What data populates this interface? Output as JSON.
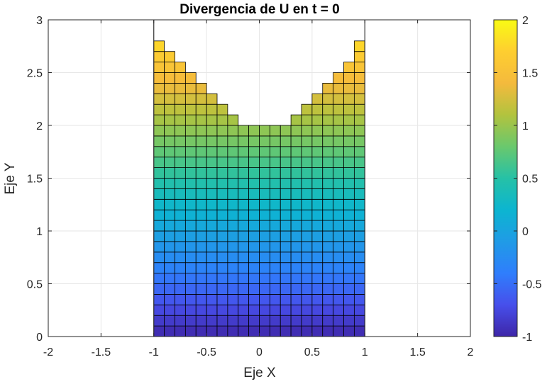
{
  "chart_data": {
    "type": "heatmap",
    "title": "Divergencia de U en t = 0",
    "xlabel": "Eje X",
    "ylabel": "Eje Y",
    "xlim": [
      -2,
      2
    ],
    "ylim": [
      0,
      3
    ],
    "xticks": [
      "-2",
      "-1.5",
      "-1",
      "-0.5",
      "0",
      "0.5",
      "1",
      "1.5",
      "2"
    ],
    "yticks": [
      "0",
      "0.5",
      "1",
      "1.5",
      "2",
      "2.5",
      "3"
    ],
    "grid": true,
    "colormap": "parula",
    "clim": [
      -1,
      2
    ],
    "colorbar_ticks": [
      "-1",
      "-0.5",
      "0",
      "0.5",
      "1",
      "1.5",
      "2"
    ],
    "cell_size": 0.1,
    "x_centers": [
      -0.95,
      -0.85,
      -0.75,
      -0.65,
      -0.55,
      -0.45,
      -0.35,
      -0.25,
      -0.15,
      -0.05,
      0.05,
      0.15,
      0.25,
      0.35,
      0.45,
      0.55,
      0.65,
      0.75,
      0.85,
      0.95
    ],
    "column_top_y": [
      2.8,
      2.7,
      2.6,
      2.5,
      2.4,
      2.3,
      2.2,
      2.1,
      2.0,
      2.0,
      2.0,
      2.0,
      2.0,
      2.1,
      2.2,
      2.3,
      2.4,
      2.5,
      2.6,
      2.8
    ],
    "value_at_y0": -1,
    "value_gradient_per_unit_y": 1,
    "boundary_lines_x": [
      -1,
      1
    ],
    "colors": {
      "edge": "#000000",
      "grid": "#e6e6e6",
      "axis": "#262626",
      "boundary": "#333333"
    }
  }
}
